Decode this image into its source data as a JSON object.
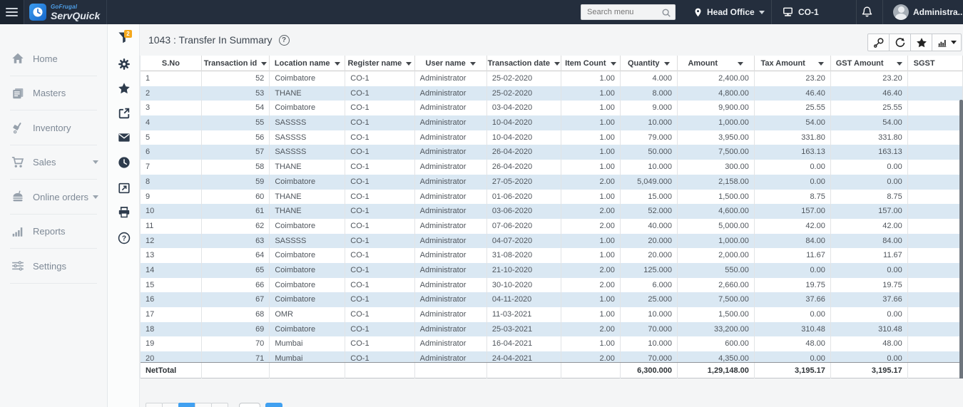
{
  "navbar": {
    "brand": {
      "name_top": "GoFrugal",
      "name_bottom": "ServQuick"
    },
    "search": {
      "placeholder": "Search menu"
    },
    "location": {
      "label": "Head Office"
    },
    "register": {
      "label": "CO-1"
    },
    "user": {
      "label": "Administra..."
    }
  },
  "sidebar": {
    "items": [
      {
        "label": "Home",
        "icon": "home-icon",
        "expandable": false
      },
      {
        "label": "Masters",
        "icon": "masters-icon",
        "expandable": false
      },
      {
        "label": "Inventory",
        "icon": "inventory-icon",
        "expandable": false
      },
      {
        "label": "Sales",
        "icon": "sales-cart-icon",
        "expandable": true
      },
      {
        "label": "Online orders",
        "icon": "online-orders-icon",
        "expandable": true
      },
      {
        "label": "Reports",
        "icon": "reports-icon",
        "expandable": false
      },
      {
        "label": "Settings",
        "icon": "settings-icon",
        "expandable": false
      }
    ]
  },
  "icon_strip": {
    "items": [
      "filter-icon",
      "gear-icon",
      "star-icon",
      "export-icon",
      "mail-icon",
      "clock-icon",
      "page-export-icon",
      "printer-icon",
      "help-icon"
    ],
    "filter_badge": "2",
    "badge_color": "#f5a81c"
  },
  "report": {
    "title": "1043 : Transfer In Summary",
    "toolbar_icons": [
      "magnifier-icon",
      "refresh-icon",
      "star-icon",
      "chart-icon"
    ],
    "table": {
      "columns": [
        "S.No",
        "Transaction id",
        "Location name",
        "Register name",
        "User name",
        "Transaction date",
        "Item Count",
        "Quantity",
        "Amount",
        "Tax Amount",
        "GST Amount",
        "SGST"
      ],
      "rows": [
        [
          "1",
          "52",
          "Coimbatore",
          "CO-1",
          "Administrator",
          "25-02-2020",
          "1.00",
          "4.000",
          "2,400.00",
          "23.20",
          "23.20"
        ],
        [
          "2",
          "53",
          "THANE",
          "CO-1",
          "Administrator",
          "25-02-2020",
          "1.00",
          "8.000",
          "4,800.00",
          "46.40",
          "46.40"
        ],
        [
          "3",
          "54",
          "Coimbatore",
          "CO-1",
          "Administrator",
          "03-04-2020",
          "1.00",
          "9.000",
          "9,900.00",
          "25.55",
          "25.55"
        ],
        [
          "4",
          "55",
          "SASSSS",
          "CO-1",
          "Administrator",
          "10-04-2020",
          "1.00",
          "10.000",
          "1,000.00",
          "54.00",
          "54.00"
        ],
        [
          "5",
          "56",
          "SASSSS",
          "CO-1",
          "Administrator",
          "10-04-2020",
          "1.00",
          "79.000",
          "3,950.00",
          "331.80",
          "331.80"
        ],
        [
          "6",
          "57",
          "SASSSS",
          "CO-1",
          "Administrator",
          "26-04-2020",
          "1.00",
          "50.000",
          "7,500.00",
          "163.13",
          "163.13"
        ],
        [
          "7",
          "58",
          "THANE",
          "CO-1",
          "Administrator",
          "26-04-2020",
          "1.00",
          "10.000",
          "300.00",
          "0.00",
          "0.00"
        ],
        [
          "8",
          "59",
          "Coimbatore",
          "CO-1",
          "Administrator",
          "27-05-2020",
          "2.00",
          "5,049.000",
          "2,158.00",
          "0.00",
          "0.00"
        ],
        [
          "9",
          "60",
          "THANE",
          "CO-1",
          "Administrator",
          "01-06-2020",
          "1.00",
          "15.000",
          "1,500.00",
          "8.75",
          "8.75"
        ],
        [
          "10",
          "61",
          "THANE",
          "CO-1",
          "Administrator",
          "03-06-2020",
          "2.00",
          "52.000",
          "4,600.00",
          "157.00",
          "157.00"
        ],
        [
          "11",
          "62",
          "Coimbatore",
          "CO-1",
          "Administrator",
          "07-06-2020",
          "2.00",
          "40.000",
          "5,000.00",
          "42.00",
          "42.00"
        ],
        [
          "12",
          "63",
          "SASSSS",
          "CO-1",
          "Administrator",
          "04-07-2020",
          "1.00",
          "20.000",
          "1,000.00",
          "84.00",
          "84.00"
        ],
        [
          "13",
          "64",
          "Coimbatore",
          "CO-1",
          "Administrator",
          "31-08-2020",
          "1.00",
          "20.000",
          "2,000.00",
          "11.67",
          "11.67"
        ],
        [
          "14",
          "65",
          "Coimbatore",
          "CO-1",
          "Administrator",
          "21-10-2020",
          "2.00",
          "125.000",
          "550.00",
          "0.00",
          "0.00"
        ],
        [
          "15",
          "66",
          "Coimbatore",
          "CO-1",
          "Administrator",
          "30-10-2020",
          "2.00",
          "6.000",
          "2,660.00",
          "19.75",
          "19.75"
        ],
        [
          "16",
          "67",
          "Coimbatore",
          "CO-1",
          "Administrator",
          "04-11-2020",
          "1.00",
          "25.000",
          "7,500.00",
          "37.66",
          "37.66"
        ],
        [
          "17",
          "68",
          "OMR",
          "CO-1",
          "Administrator",
          "11-03-2021",
          "1.00",
          "10.000",
          "1,500.00",
          "0.00",
          "0.00"
        ],
        [
          "18",
          "69",
          "Coimbatore",
          "CO-1",
          "Administrator",
          "25-03-2021",
          "2.00",
          "70.000",
          "33,200.00",
          "310.48",
          "310.48"
        ],
        [
          "19",
          "70",
          "Mumbai",
          "CO-1",
          "Administrator",
          "16-04-2021",
          "1.00",
          "10.000",
          "600.00",
          "48.00",
          "48.00"
        ],
        [
          "20",
          "71",
          "Mumbai",
          "CO-1",
          "Administrator",
          "24-04-2021",
          "2.00",
          "70.000",
          "4,350.00",
          "0.00",
          "0.00"
        ]
      ],
      "net_total": {
        "label": "NetTotal",
        "quantity": "6,300.000",
        "amount": "1,29,148.00",
        "tax_amount": "3,195.17",
        "gst_amount": "3,195.17"
      }
    }
  }
}
